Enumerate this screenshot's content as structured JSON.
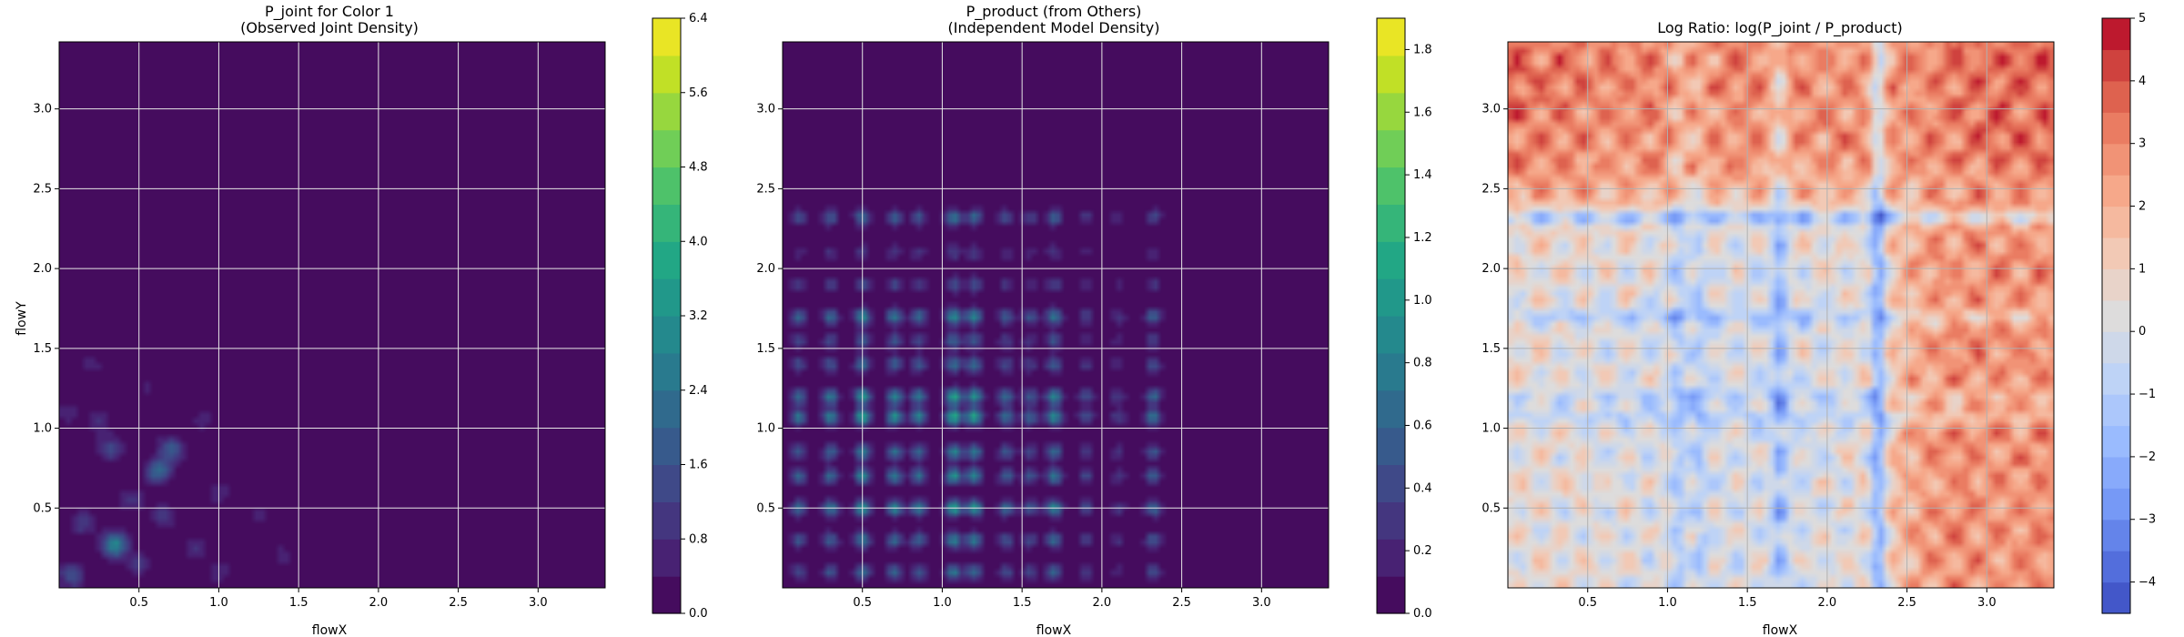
{
  "chart_data": [
    {
      "type": "heatmap",
      "title": "P_joint for Color 1",
      "subtitle": "(Observed Joint Density)",
      "xlabel": "flowX",
      "ylabel": "flowY",
      "xlim": [
        0.0,
        3.42
      ],
      "ylim": [
        0.0,
        3.42
      ],
      "x_ticks": [
        "0.5",
        "1.0",
        "1.5",
        "2.0",
        "2.5",
        "3.0"
      ],
      "y_ticks": [
        "0.5",
        "1.0",
        "1.5",
        "2.0",
        "2.5",
        "3.0"
      ],
      "grid": true,
      "colormap": "viridis",
      "colorbar": {
        "range": [
          0.0,
          6.4
        ],
        "ticks": [
          "0.0",
          "0.8",
          "1.6",
          "2.4",
          "3.2",
          "4.0",
          "4.8",
          "5.6",
          "6.4"
        ]
      },
      "background_color": "#440154",
      "peaks": [
        {
          "x": 0.35,
          "y": 0.27,
          "value": 3.0
        },
        {
          "x": 0.62,
          "y": 0.73,
          "value": 2.2
        },
        {
          "x": 0.7,
          "y": 0.87,
          "value": 1.8
        },
        {
          "x": 0.08,
          "y": 0.08,
          "value": 1.6
        },
        {
          "x": 0.32,
          "y": 0.87,
          "value": 1.4
        },
        {
          "x": 0.15,
          "y": 0.4,
          "value": 1.1
        },
        {
          "x": 0.45,
          "y": 0.55,
          "value": 1.0
        },
        {
          "x": 0.25,
          "y": 1.05,
          "value": 0.9
        },
        {
          "x": 0.85,
          "y": 0.25,
          "value": 0.9
        },
        {
          "x": 0.5,
          "y": 0.15,
          "value": 1.0
        },
        {
          "x": 1.0,
          "y": 0.6,
          "value": 0.7
        },
        {
          "x": 0.2,
          "y": 1.4,
          "value": 0.6
        },
        {
          "x": 1.4,
          "y": 0.2,
          "value": 0.6
        },
        {
          "x": 0.9,
          "y": 1.05,
          "value": 0.6
        },
        {
          "x": 0.05,
          "y": 1.1,
          "value": 0.7
        },
        {
          "x": 0.65,
          "y": 0.45,
          "value": 1.0
        },
        {
          "x": 1.25,
          "y": 0.45,
          "value": 0.5
        },
        {
          "x": 1.85,
          "y": 0.15,
          "value": 0.4
        },
        {
          "x": 0.55,
          "y": 1.25,
          "value": 0.5
        },
        {
          "x": 0.8,
          "y": 1.6,
          "value": 0.4
        },
        {
          "x": 1.0,
          "y": 0.1,
          "value": 0.7
        },
        {
          "x": 0.4,
          "y": 1.65,
          "value": 0.4
        }
      ]
    },
    {
      "type": "heatmap",
      "title": "P_product (from Others)",
      "subtitle": "(Independent Model Density)",
      "xlabel": "flowX",
      "ylabel": "",
      "xlim": [
        0.0,
        3.42
      ],
      "ylim": [
        0.0,
        3.42
      ],
      "x_ticks": [
        "0.5",
        "1.0",
        "1.5",
        "2.0",
        "2.5",
        "3.0"
      ],
      "y_ticks": [
        "0.5",
        "1.0",
        "1.5",
        "2.0",
        "2.5",
        "3.0"
      ],
      "grid": true,
      "colormap": "viridis",
      "colorbar": {
        "range": [
          0.0,
          1.9
        ],
        "ticks": [
          "0.0",
          "0.2",
          "0.4",
          "0.6",
          "0.8",
          "1.0",
          "1.2",
          "1.4",
          "1.6",
          "1.8"
        ]
      },
      "background_color": "#440154",
      "marginal_peaks": [
        {
          "pos": 0.1,
          "weight": 0.6
        },
        {
          "pos": 0.3,
          "weight": 0.7
        },
        {
          "pos": 0.5,
          "weight": 0.9
        },
        {
          "pos": 0.7,
          "weight": 0.8
        },
        {
          "pos": 0.85,
          "weight": 0.7
        },
        {
          "pos": 1.07,
          "weight": 1.0
        },
        {
          "pos": 1.2,
          "weight": 0.9
        },
        {
          "pos": 1.4,
          "weight": 0.6
        },
        {
          "pos": 1.55,
          "weight": 0.5
        },
        {
          "pos": 1.7,
          "weight": 0.8
        },
        {
          "pos": 1.9,
          "weight": 0.4
        },
        {
          "pos": 2.1,
          "weight": 0.3
        },
        {
          "pos": 2.32,
          "weight": 0.6
        }
      ]
    },
    {
      "type": "heatmap",
      "title": "Log Ratio: log(P_joint / P_product)",
      "subtitle": "",
      "xlabel": "flowX",
      "ylabel": "",
      "xlim": [
        0.0,
        3.42
      ],
      "ylim": [
        0.0,
        3.42
      ],
      "x_ticks": [
        "0.5",
        "1.0",
        "1.5",
        "2.0",
        "2.5",
        "3.0"
      ],
      "y_ticks": [
        "0.5",
        "1.0",
        "1.5",
        "2.0",
        "2.5",
        "3.0"
      ],
      "grid": true,
      "colormap": "coolwarm",
      "colorbar": {
        "range": [
          -4.5,
          5.0
        ],
        "ticks": [
          "−4",
          "−3",
          "−2",
          "−1",
          "0",
          "1",
          "2",
          "3",
          "4",
          "5"
        ]
      },
      "features": [
        {
          "axis": "x",
          "pos": 2.32,
          "value": -3.0
        },
        {
          "axis": "y",
          "pos": 2.32,
          "value": -2.5
        },
        {
          "axis": "x",
          "pos": 1.7,
          "value": -1.8
        },
        {
          "axis": "y",
          "pos": 1.7,
          "value": -1.4
        },
        {
          "axis": "x",
          "pos": 1.07,
          "value": -1.2
        },
        {
          "axis": "y",
          "pos": 1.2,
          "value": -1.0
        },
        {
          "axis": "x",
          "pos": 1.2,
          "value": -1.0
        },
        {
          "axis": "y",
          "pos": 1.07,
          "value": -1.0
        }
      ],
      "hot_region": {
        "x_from": 2.4,
        "y_from": 2.4,
        "value": 3.5
      }
    }
  ]
}
